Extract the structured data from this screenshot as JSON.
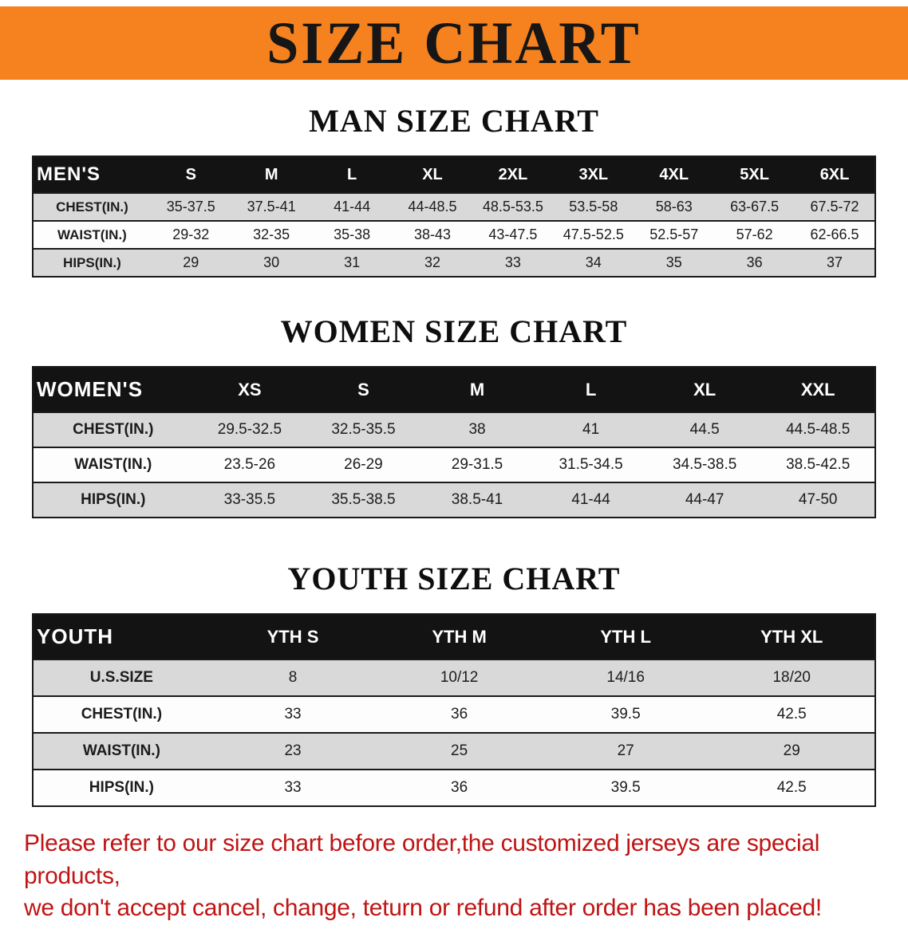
{
  "banner": {
    "title": "SIZE CHART",
    "background_color": "#f5821f",
    "text_color": "#161616"
  },
  "colors": {
    "table_header_bg": "#131313",
    "table_row_alt_bg": "#d9d9d9",
    "disclaimer_red": "#c01414"
  },
  "sections": [
    {
      "heading": "MAN SIZE CHART",
      "table": {
        "header": [
          "MEN'S",
          "S",
          "M",
          "L",
          "XL",
          "2XL",
          "3XL",
          "4XL",
          "5XL",
          "6XL"
        ],
        "rows": [
          {
            "label": "CHEST(IN.)",
            "values": [
              "35-37.5",
              "37.5-41",
              "41-44",
              "44-48.5",
              "48.5-53.5",
              "53.5-58",
              "58-63",
              "63-67.5",
              "67.5-72"
            ]
          },
          {
            "label": "WAIST(IN.)",
            "values": [
              "29-32",
              "32-35",
              "35-38",
              "38-43",
              "43-47.5",
              "47.5-52.5",
              "52.5-57",
              "57-62",
              "62-66.5"
            ]
          },
          {
            "label": "HIPS(IN.)",
            "values": [
              "29",
              "30",
              "31",
              "32",
              "33",
              "34",
              "35",
              "36",
              "37"
            ]
          }
        ]
      }
    },
    {
      "heading": "WOMEN SIZE CHART",
      "table": {
        "header": [
          "WOMEN'S",
          "XS",
          "S",
          "M",
          "L",
          "XL",
          "XXL"
        ],
        "rows": [
          {
            "label": "CHEST(IN.)",
            "values": [
              "29.5-32.5",
              "32.5-35.5",
              "38",
              "41",
              "44.5",
              "44.5-48.5"
            ]
          },
          {
            "label": "WAIST(IN.)",
            "values": [
              "23.5-26",
              "26-29",
              "29-31.5",
              "31.5-34.5",
              "34.5-38.5",
              "38.5-42.5"
            ]
          },
          {
            "label": "HIPS(IN.)",
            "values": [
              "33-35.5",
              "35.5-38.5",
              "38.5-41",
              "41-44",
              "44-47",
              "47-50"
            ]
          }
        ]
      }
    },
    {
      "heading": "YOUTH SIZE CHART",
      "table": {
        "header": [
          "YOUTH",
          "YTH S",
          "YTH M",
          "YTH L",
          "YTH XL"
        ],
        "rows": [
          {
            "label": "U.S.SIZE",
            "values": [
              "8",
              "10/12",
              "14/16",
              "18/20"
            ]
          },
          {
            "label": "CHEST(IN.)",
            "values": [
              "33",
              "36",
              "39.5",
              "42.5"
            ]
          },
          {
            "label": "WAIST(IN.)",
            "values": [
              "23",
              "25",
              "27",
              "29"
            ]
          },
          {
            "label": "HIPS(IN.)",
            "values": [
              "33",
              "36",
              "39.5",
              "42.5"
            ]
          }
        ]
      }
    }
  ],
  "disclaimer": {
    "line1": "Please refer to our size chart before order,the customized jerseys are special products,",
    "line2": "we don't accept cancel, change, teturn or refund after order has been placed!"
  }
}
